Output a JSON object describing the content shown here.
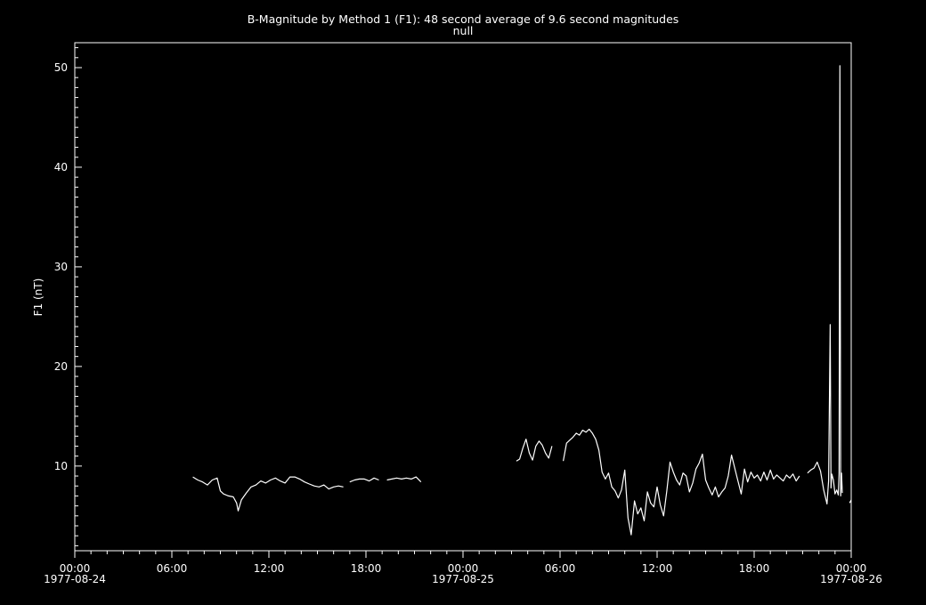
{
  "chart_data": {
    "type": "line",
    "title": "B-Magnitude by Method 1 (F1): 48 second average of 9.6 second magnitudes",
    "subtitle": "null",
    "ylabel": "F1 (nT)",
    "xlabel": "",
    "xlim_hours": [
      0,
      48
    ],
    "ylim": [
      1.5,
      52.5
    ],
    "y_ticks": [
      10,
      20,
      30,
      40,
      50
    ],
    "x_ticks": [
      {
        "h": 0,
        "label": "00:00",
        "date": "1977-08-24"
      },
      {
        "h": 6,
        "label": "06:00",
        "date": ""
      },
      {
        "h": 12,
        "label": "12:00",
        "date": ""
      },
      {
        "h": 18,
        "label": "18:00",
        "date": ""
      },
      {
        "h": 24,
        "label": "00:00",
        "date": "1977-08-25"
      },
      {
        "h": 30,
        "label": "06:00",
        "date": ""
      },
      {
        "h": 36,
        "label": "12:00",
        "date": ""
      },
      {
        "h": 42,
        "label": "18:00",
        "date": ""
      },
      {
        "h": 48,
        "label": "00:00",
        "date": "1977-08-26"
      }
    ],
    "grid": false,
    "colors": {
      "background": "#000000",
      "line": "#ffffff",
      "axes": "#ffffff"
    },
    "series": [
      {
        "segment": 1,
        "x_hours": [
          7.3,
          7.6,
          7.9,
          8.2,
          8.5,
          8.8,
          9.0,
          9.2,
          9.5,
          9.8,
          10.0,
          10.1,
          10.3,
          10.6,
          10.9,
          11.2,
          11.5,
          11.8,
          12.1,
          12.4,
          12.7,
          13.0,
          13.3,
          13.6,
          13.9,
          14.2,
          14.5,
          14.8,
          15.1,
          15.4,
          15.7,
          16.0,
          16.3,
          16.6
        ],
        "values": [
          8.9,
          8.6,
          8.4,
          8.1,
          8.6,
          8.8,
          7.5,
          7.2,
          7.0,
          6.9,
          6.3,
          5.5,
          6.6,
          7.3,
          7.9,
          8.1,
          8.5,
          8.3,
          8.6,
          8.8,
          8.5,
          8.3,
          8.9,
          8.9,
          8.7,
          8.4,
          8.2,
          8.0,
          7.9,
          8.1,
          7.7,
          7.9,
          8.0,
          7.9
        ]
      },
      {
        "segment": 2,
        "x_hours": [
          17.0,
          17.3,
          17.6,
          17.9,
          18.2,
          18.5,
          18.8
        ],
        "values": [
          8.4,
          8.6,
          8.7,
          8.7,
          8.5,
          8.8,
          8.6
        ]
      },
      {
        "segment": 3,
        "x_hours": [
          19.3,
          19.6,
          19.9,
          20.2,
          20.5,
          20.8,
          21.1,
          21.4
        ],
        "values": [
          8.6,
          8.7,
          8.8,
          8.7,
          8.8,
          8.7,
          8.9,
          8.4
        ]
      },
      {
        "segment": 4,
        "x_hours": [
          27.3,
          27.5,
          27.7,
          27.9,
          28.1,
          28.3,
          28.5,
          28.7,
          28.9,
          29.1,
          29.3,
          29.5
        ],
        "values": [
          10.5,
          10.7,
          11.8,
          12.7,
          11.3,
          10.6,
          12.0,
          12.5,
          12.1,
          11.3,
          10.8,
          12.0
        ]
      },
      {
        "segment": 5,
        "x_hours": [
          30.2,
          30.4,
          30.6,
          30.8,
          31.0,
          31.2,
          31.4,
          31.6,
          31.8,
          32.0,
          32.2,
          32.4,
          32.6,
          32.8,
          33.0,
          33.2,
          33.4,
          33.6,
          33.8,
          34.0,
          34.2,
          34.4,
          34.6,
          34.8,
          35.0,
          35.2,
          35.4,
          35.6,
          35.8,
          36.0,
          36.2,
          36.4,
          36.6,
          36.8,
          37.0,
          37.2,
          37.4,
          37.6,
          37.8,
          38.0,
          38.2,
          38.4,
          38.6,
          38.8,
          39.0,
          39.2,
          39.4,
          39.6,
          39.8,
          40.0,
          40.2,
          40.4,
          40.6,
          40.8,
          41.0,
          41.2,
          41.4,
          41.6,
          41.8,
          42.0,
          42.2,
          42.4,
          42.6,
          42.8,
          43.0,
          43.2,
          43.4,
          43.6,
          43.8,
          44.0,
          44.2,
          44.4,
          44.6,
          44.8
        ],
        "values": [
          10.5,
          12.3,
          12.6,
          12.9,
          13.3,
          13.1,
          13.6,
          13.4,
          13.7,
          13.3,
          12.7,
          11.6,
          9.4,
          8.7,
          9.3,
          7.9,
          7.5,
          6.8,
          7.6,
          9.6,
          4.8,
          3.1,
          6.5,
          5.2,
          5.8,
          4.5,
          7.4,
          6.3,
          5.9,
          7.9,
          6.1,
          5.0,
          7.5,
          10.4,
          9.4,
          8.6,
          8.1,
          9.3,
          9.0,
          7.4,
          8.3,
          9.7,
          10.3,
          11.2,
          8.6,
          7.8,
          7.1,
          7.9,
          6.9,
          7.4,
          7.8,
          9.0,
          11.1,
          9.8,
          8.5,
          7.2,
          9.7,
          8.4,
          9.4,
          8.8,
          9.1,
          8.5,
          9.4,
          8.6,
          9.6,
          8.7,
          9.1,
          8.8,
          8.5,
          9.1,
          8.8,
          9.2,
          8.5,
          9.0
        ]
      },
      {
        "segment": 6,
        "x_hours": [
          45.3,
          45.5,
          45.7,
          45.9,
          46.1,
          46.3,
          46.5,
          46.6,
          46.7,
          46.75,
          46.8,
          46.9,
          47.0,
          47.1,
          47.2,
          47.25,
          47.3,
          47.35,
          47.4,
          47.45
        ],
        "values": [
          9.3,
          9.6,
          9.8,
          10.4,
          9.5,
          7.6,
          6.2,
          8.5,
          24.2,
          7.8,
          9.2,
          8.6,
          7.2,
          7.6,
          7.1,
          9.3,
          50.2,
          7.0,
          9.3,
          7.3
        ]
      },
      {
        "segment": 7,
        "x_hours": [
          47.9,
          48.0
        ],
        "values": [
          6.3,
          6.6
        ]
      }
    ]
  }
}
